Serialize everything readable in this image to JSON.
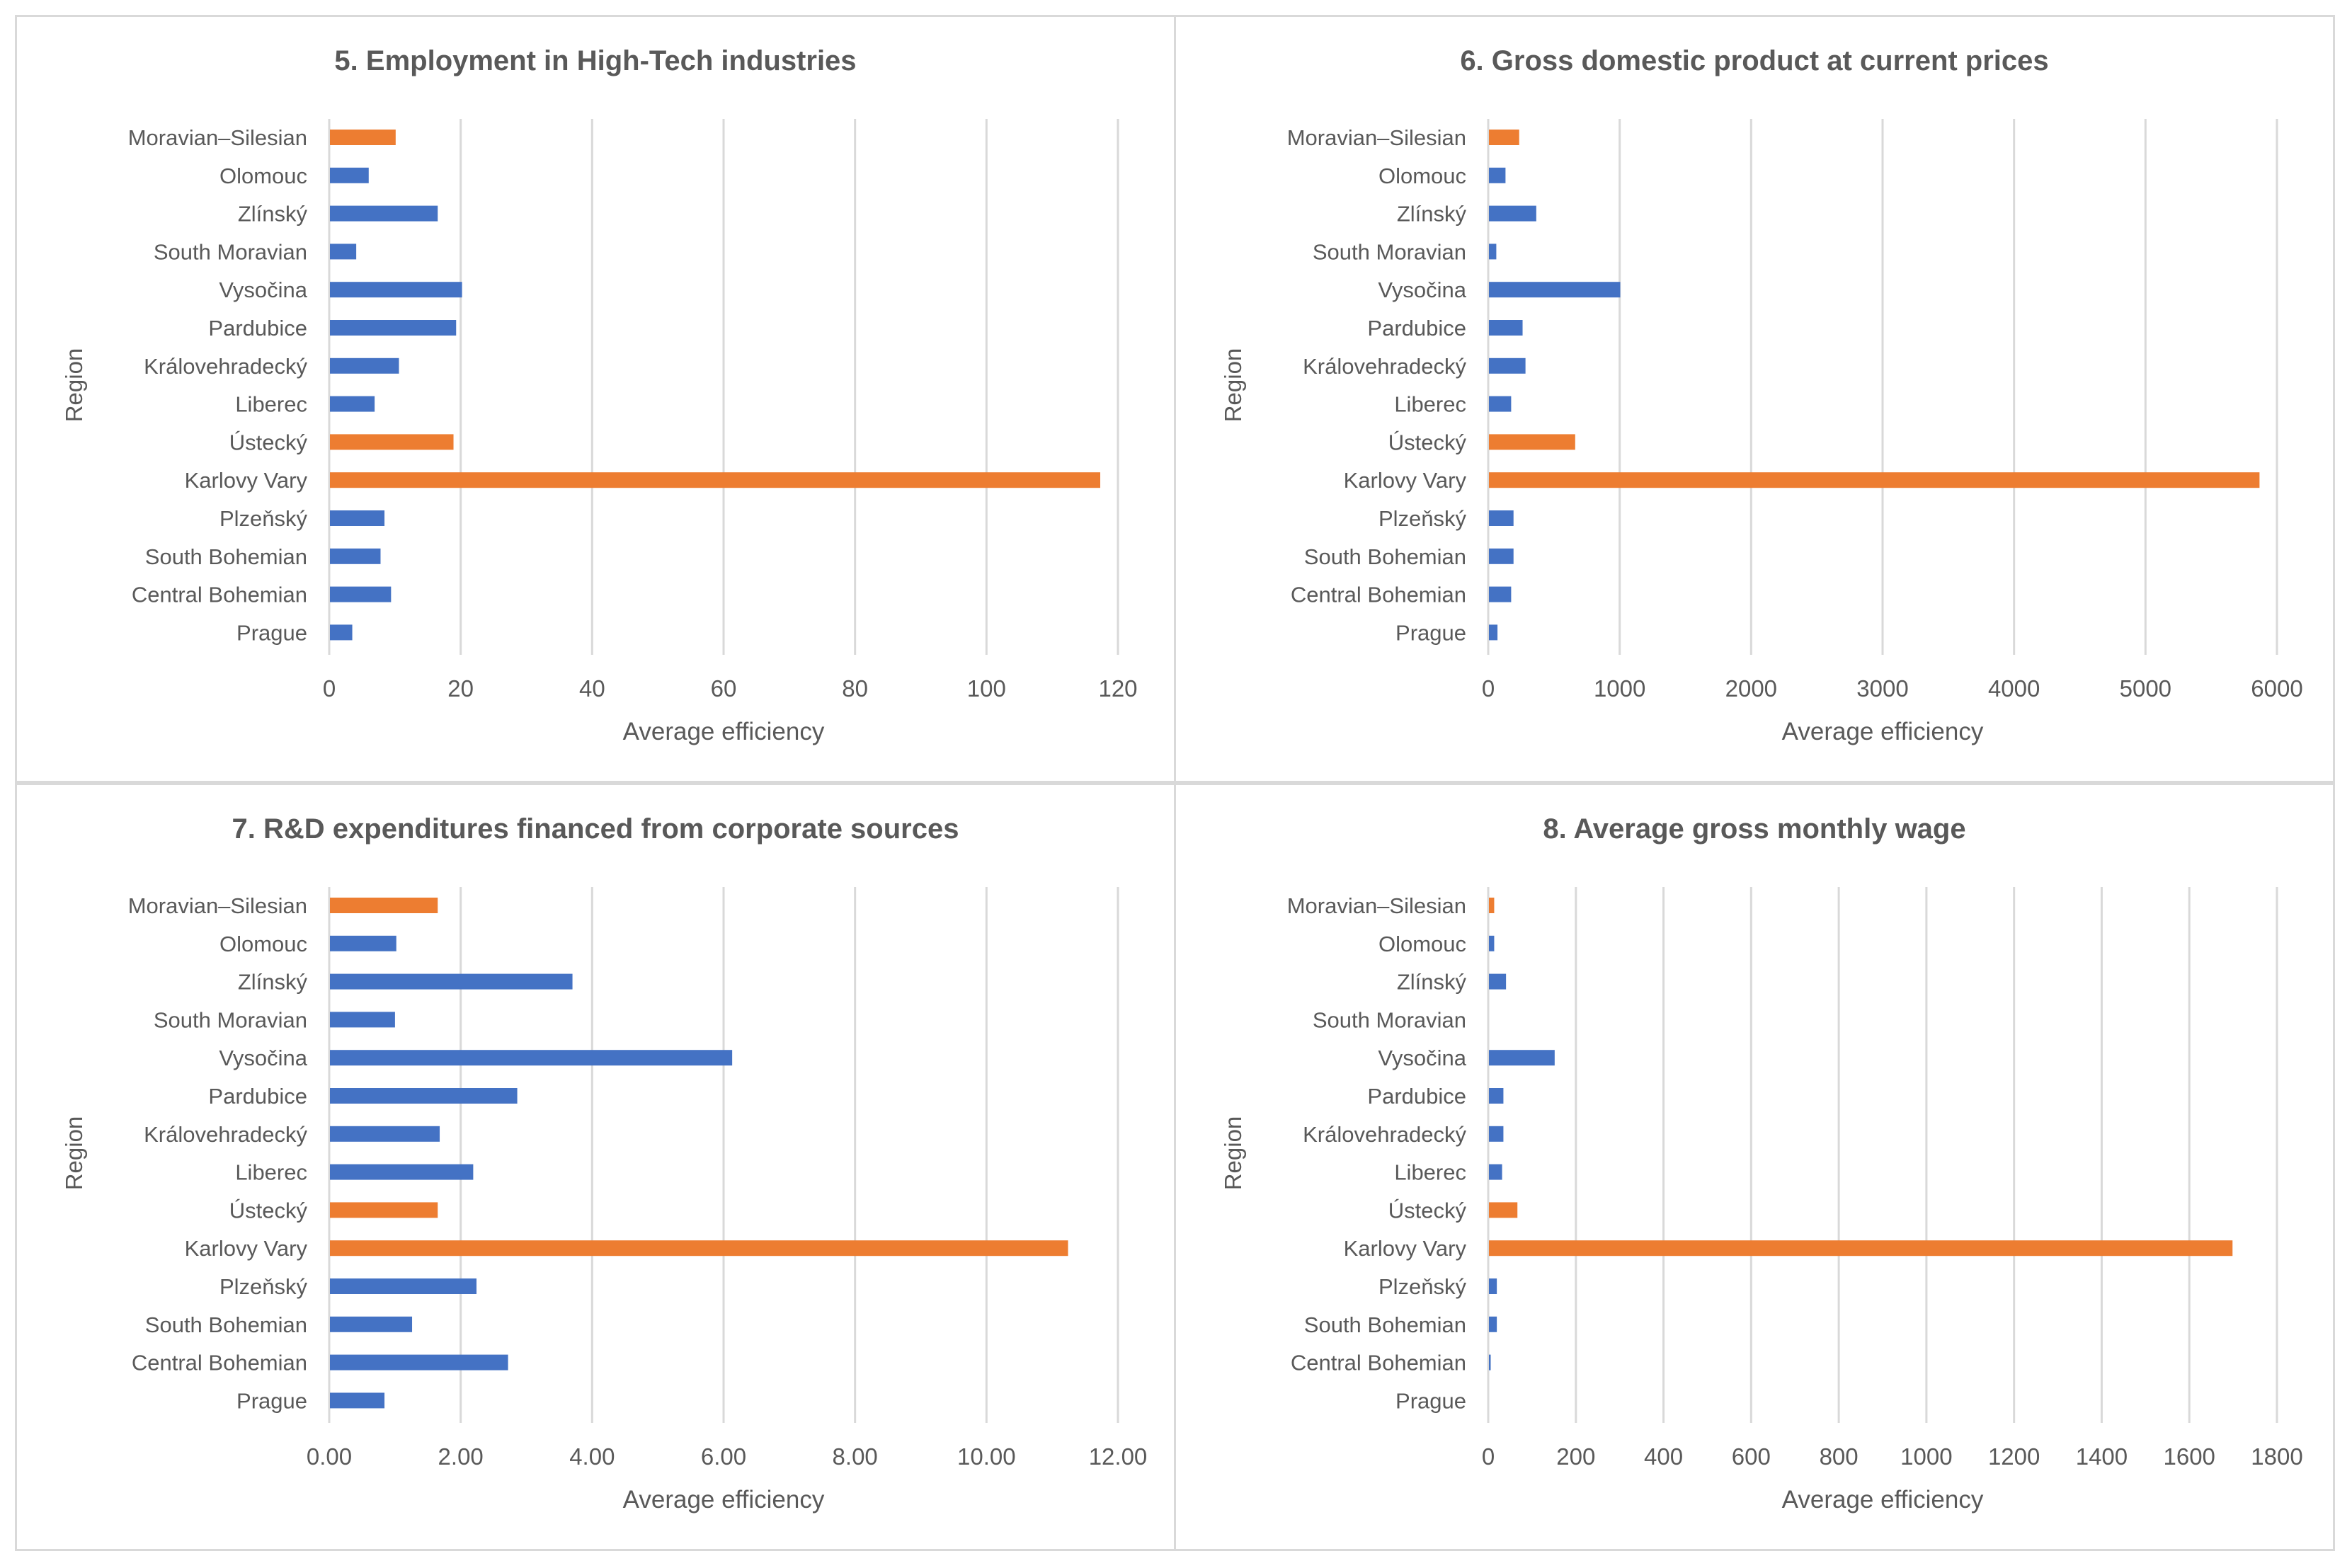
{
  "colors": {
    "blue": "#4472C4",
    "orange": "#ED7D31",
    "grid": "#D9D9D9",
    "text": "#595959"
  },
  "chart_data": [
    {
      "type": "bar",
      "orientation": "horizontal",
      "title": "5. Employment in High-Tech industries",
      "xlabel": "Average efficiency",
      "ylabel": "Region",
      "categories": [
        "Moravian–Silesian",
        "Olomouc",
        "Zlínský",
        "South Moravian",
        "Vysočina",
        "Pardubice",
        "Královehradecký",
        "Liberec",
        "Ústecký",
        "Karlovy Vary",
        "Plzeňský",
        "South Bohemian",
        "Central Bohemian",
        "Prague"
      ],
      "values": [
        10.0,
        5.9,
        16.4,
        4.0,
        20.1,
        19.2,
        10.5,
        6.8,
        18.8,
        117.2,
        8.3,
        7.7,
        9.3,
        3.4
      ],
      "highlight": [
        "Moravian–Silesian",
        "Ústecký",
        "Karlovy Vary"
      ],
      "xlim": [
        0,
        120
      ],
      "xticks": [
        "0",
        "20",
        "40",
        "60",
        "80",
        "100",
        "120"
      ],
      "grid": true
    },
    {
      "type": "bar",
      "orientation": "horizontal",
      "title": "6. Gross domestic product at current prices",
      "xlabel": "Average efficiency",
      "ylabel": "Region",
      "categories": [
        "Moravian–Silesian",
        "Olomouc",
        "Zlínský",
        "South Moravian",
        "Vysočina",
        "Pardubice",
        "Královehradecký",
        "Liberec",
        "Ústecký",
        "Karlovy Vary",
        "Plzeňský",
        "South Bohemian",
        "Central Bohemian",
        "Prague"
      ],
      "values": [
        230,
        126,
        360,
        56,
        999,
        256,
        278,
        169,
        656,
        5862,
        187,
        187,
        169,
        65
      ],
      "highlight": [
        "Moravian–Silesian",
        "Ústecký",
        "Karlovy Vary"
      ],
      "xlim": [
        0,
        6000
      ],
      "xticks": [
        "0",
        "1000",
        "2000",
        "3000",
        "4000",
        "5000",
        "6000"
      ],
      "grid": true
    },
    {
      "type": "bar",
      "orientation": "horizontal",
      "title": "7. R&D expenditures financed from corporate sources",
      "xlabel": "Average efficiency",
      "ylabel": "Region",
      "categories": [
        "Moravian–Silesian",
        "Olomouc",
        "Zlínský",
        "South Moravian",
        "Vysočina",
        "Pardubice",
        "Královehradecký",
        "Liberec",
        "Ústecký",
        "Karlovy Vary",
        "Plzeňský",
        "South Bohemian",
        "Central Bohemian",
        "Prague"
      ],
      "values": [
        1.64,
        1.01,
        3.69,
        0.99,
        6.12,
        2.85,
        1.67,
        2.18,
        1.64,
        11.23,
        2.23,
        1.25,
        2.71,
        0.83
      ],
      "highlight": [
        "Moravian–Silesian",
        "Ústecký",
        "Karlovy Vary"
      ],
      "xlim": [
        0,
        12
      ],
      "xticks": [
        "0.00",
        "2.00",
        "4.00",
        "6.00",
        "8.00",
        "10.00",
        "12.00"
      ],
      "grid": true
    },
    {
      "type": "bar",
      "orientation": "horizontal",
      "title": "8. Average gross monthly wage",
      "xlabel": "Average efficiency",
      "ylabel": "Region",
      "categories": [
        "Moravian–Silesian",
        "Olomouc",
        "Zlínský",
        "South Moravian",
        "Vysočina",
        "Pardubice",
        "Královehradecký",
        "Liberec",
        "Ústecký",
        "Karlovy Vary",
        "Plzeňský",
        "South Bohemian",
        "Central Bohemian",
        "Prague"
      ],
      "values": [
        12,
        12,
        39,
        0,
        150,
        33,
        33,
        30,
        65,
        1697,
        18,
        18,
        4,
        0
      ],
      "highlight": [
        "Moravian–Silesian",
        "Ústecký",
        "Karlovy Vary"
      ],
      "xlim": [
        0,
        1800
      ],
      "xticks": [
        "0",
        "200",
        "400",
        "600",
        "800",
        "1000",
        "1200",
        "1400",
        "1600",
        "1800"
      ],
      "grid": true
    }
  ]
}
